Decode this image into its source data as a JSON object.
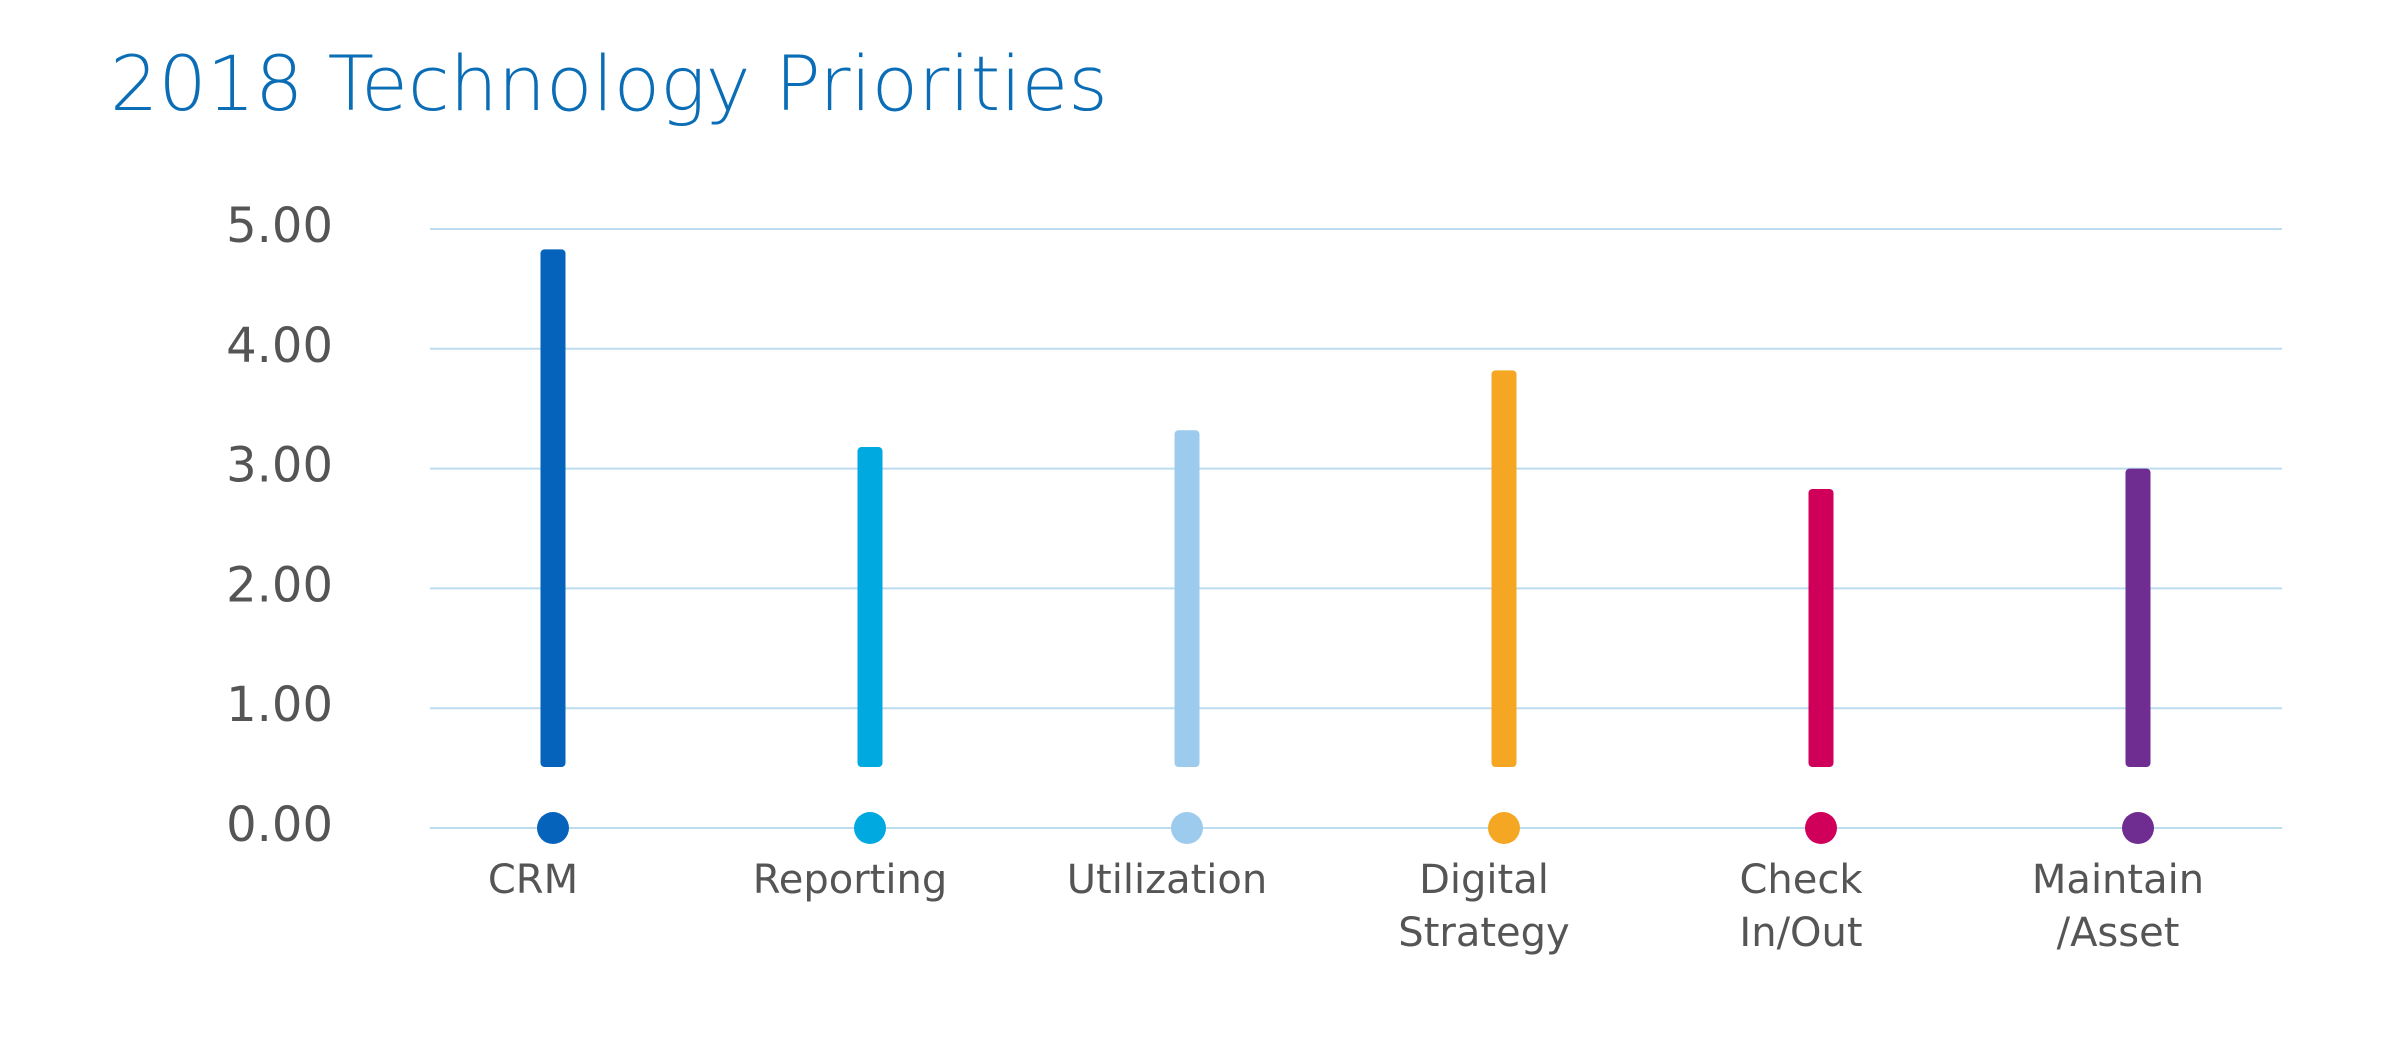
{
  "chart_data": {
    "type": "bar",
    "title": "2018 Technology Priorities",
    "categories": [
      [
        "CRM"
      ],
      [
        "Reporting"
      ],
      [
        "Utilization"
      ],
      [
        "Digital",
        "Strategy"
      ],
      [
        "Check",
        "In/Out"
      ],
      [
        "Maintain",
        "/Asset"
      ]
    ],
    "values": [
      4.83,
      3.18,
      3.32,
      3.82,
      2.83,
      3.0
    ],
    "colors": [
      "#0563bb",
      "#00a9e0",
      "#9ccbee",
      "#f5a623",
      "#d0005a",
      "#6f2c91"
    ],
    "ylim": [
      0,
      5
    ],
    "yticks": [
      {
        "value": 0,
        "label": "0.00"
      },
      {
        "value": 1,
        "label": "1.00"
      },
      {
        "value": 2,
        "label": "2.00"
      },
      {
        "value": 3,
        "label": "3.00"
      },
      {
        "value": 4,
        "label": "4.00"
      },
      {
        "value": 5,
        "label": "5.00"
      }
    ],
    "grid": true
  }
}
